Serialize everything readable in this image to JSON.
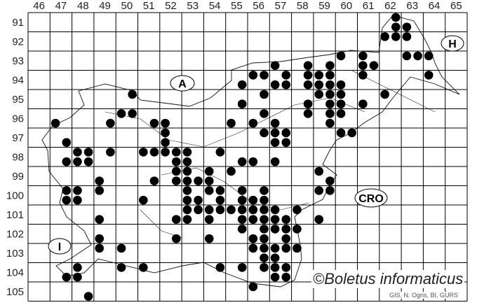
{
  "map": {
    "columns": [
      "46",
      "47",
      "48",
      "49",
      "50",
      "51",
      "52",
      "53",
      "54",
      "55",
      "56",
      "57",
      "58",
      "59",
      "60",
      "61",
      "62",
      "63",
      "64",
      "65"
    ],
    "rows": [
      "91",
      "92",
      "93",
      "94",
      "95",
      "96",
      "97",
      "98",
      "99",
      "100",
      "101",
      "102",
      "103",
      "104",
      "105"
    ],
    "country_labels": {
      "austria": "A",
      "hungary": "H",
      "croatia": "CRO",
      "italy": "I"
    },
    "watermark": "©Boletus informaticus",
    "credit": "GIS, N. Ogris, BI, GURS",
    "dot_color": "#000000",
    "records": [
      [
        62.75,
        91.25
      ],
      [
        62.75,
        91.75
      ],
      [
        63.25,
        91.75
      ],
      [
        62.25,
        92.25
      ],
      [
        62.75,
        92.25
      ],
      [
        63.25,
        92.25
      ],
      [
        60.25,
        93.25
      ],
      [
        61.25,
        93.25
      ],
      [
        63.25,
        93.25
      ],
      [
        63.75,
        93.25
      ],
      [
        64.25,
        93.25
      ],
      [
        57.25,
        93.75
      ],
      [
        58.75,
        93.75
      ],
      [
        59.75,
        93.75
      ],
      [
        61.25,
        93.75
      ],
      [
        61.75,
        93.75
      ],
      [
        56.25,
        94.25
      ],
      [
        56.75,
        94.25
      ],
      [
        57.75,
        94.25
      ],
      [
        58.75,
        94.25
      ],
      [
        59.25,
        94.25
      ],
      [
        59.75,
        94.25
      ],
      [
        61.25,
        94.25
      ],
      [
        64.25,
        94.25
      ],
      [
        55.75,
        94.75
      ],
      [
        57.25,
        94.75
      ],
      [
        57.75,
        94.75
      ],
      [
        58.75,
        94.75
      ],
      [
        59.25,
        94.75
      ],
      [
        59.75,
        94.75
      ],
      [
        60.25,
        94.75
      ],
      [
        56.75,
        95.25
      ],
      [
        59.25,
        95.25
      ],
      [
        59.75,
        95.25
      ],
      [
        60.25,
        95.25
      ],
      [
        62.25,
        95.25
      ],
      [
        50.75,
        95.25
      ],
      [
        55.75,
        95.75
      ],
      [
        58.75,
        95.75
      ],
      [
        59.75,
        95.75
      ],
      [
        60.25,
        95.75
      ],
      [
        61.25,
        95.75
      ],
      [
        56.75,
        96.25
      ],
      [
        58.75,
        96.25
      ],
      [
        59.75,
        96.25
      ],
      [
        60.25,
        96.25
      ],
      [
        50.25,
        96.25
      ],
      [
        50.75,
        96.25
      ],
      [
        56.25,
        96.75
      ],
      [
        57.25,
        96.75
      ],
      [
        59.75,
        96.75
      ],
      [
        47.25,
        96.75
      ],
      [
        49.75,
        96.75
      ],
      [
        51.75,
        96.75
      ],
      [
        52.25,
        96.75
      ],
      [
        55.25,
        96.75
      ],
      [
        56.75,
        97.25
      ],
      [
        57.25,
        97.25
      ],
      [
        57.75,
        97.25
      ],
      [
        60.25,
        97.25
      ],
      [
        60.75,
        97.25
      ],
      [
        52.25,
        97.25
      ],
      [
        57.25,
        97.75
      ],
      [
        57.75,
        97.75
      ],
      [
        47.75,
        97.75
      ],
      [
        52.25,
        97.75
      ],
      [
        48.25,
        98.25
      ],
      [
        48.75,
        98.25
      ],
      [
        49.75,
        98.25
      ],
      [
        51.25,
        98.25
      ],
      [
        51.75,
        98.25
      ],
      [
        52.25,
        98.25
      ],
      [
        52.75,
        98.25
      ],
      [
        53.25,
        98.25
      ],
      [
        54.75,
        98.25
      ],
      [
        47.75,
        98.75
      ],
      [
        48.25,
        98.75
      ],
      [
        48.75,
        98.75
      ],
      [
        52.75,
        98.75
      ],
      [
        53.25,
        98.75
      ],
      [
        55.75,
        98.75
      ],
      [
        56.25,
        98.75
      ],
      [
        57.25,
        98.75
      ],
      [
        52.75,
        99.25
      ],
      [
        53.25,
        99.25
      ],
      [
        54.25,
        99.25
      ],
      [
        55.25,
        99.25
      ],
      [
        59.25,
        99.25
      ],
      [
        49.25,
        99.75
      ],
      [
        51.75,
        99.75
      ],
      [
        52.75,
        99.75
      ],
      [
        53.25,
        99.75
      ],
      [
        53.75,
        99.75
      ],
      [
        54.25,
        99.75
      ],
      [
        59.75,
        99.75
      ],
      [
        47.75,
        100.25
      ],
      [
        48.25,
        100.25
      ],
      [
        49.25,
        100.25
      ],
      [
        53.25,
        100.25
      ],
      [
        54.25,
        100.25
      ],
      [
        54.75,
        100.25
      ],
      [
        55.75,
        100.25
      ],
      [
        56.75,
        100.25
      ],
      [
        59.25,
        100.25
      ],
      [
        59.75,
        100.25
      ],
      [
        47.75,
        100.75
      ],
      [
        48.25,
        100.75
      ],
      [
        51.25,
        100.75
      ],
      [
        53.25,
        100.75
      ],
      [
        53.75,
        100.75
      ],
      [
        54.75,
        100.75
      ],
      [
        55.75,
        100.75
      ],
      [
        56.25,
        100.75
      ],
      [
        56.75,
        100.75
      ],
      [
        53.25,
        101.25
      ],
      [
        53.75,
        101.25
      ],
      [
        54.25,
        101.25
      ],
      [
        54.75,
        101.25
      ],
      [
        55.25,
        101.25
      ],
      [
        55.75,
        101.25
      ],
      [
        56.25,
        101.25
      ],
      [
        56.75,
        101.25
      ],
      [
        57.25,
        101.25
      ],
      [
        58.25,
        101.25
      ],
      [
        49.25,
        101.75
      ],
      [
        52.75,
        101.75
      ],
      [
        53.25,
        101.75
      ],
      [
        54.25,
        101.75
      ],
      [
        55.75,
        101.75
      ],
      [
        56.25,
        101.75
      ],
      [
        56.75,
        101.75
      ],
      [
        57.25,
        101.75
      ],
      [
        57.75,
        101.75
      ],
      [
        59.25,
        101.75
      ],
      [
        55.75,
        102.25
      ],
      [
        56.75,
        102.25
      ],
      [
        57.25,
        102.25
      ],
      [
        57.75,
        102.25
      ],
      [
        58.25,
        102.25
      ],
      [
        49.25,
        102.75
      ],
      [
        52.75,
        102.75
      ],
      [
        54.25,
        102.75
      ],
      [
        56.25,
        102.75
      ],
      [
        56.75,
        102.75
      ],
      [
        57.75,
        102.75
      ],
      [
        49.25,
        103.25
      ],
      [
        50.25,
        103.25
      ],
      [
        56.25,
        103.25
      ],
      [
        56.75,
        103.25
      ],
      [
        57.25,
        103.25
      ],
      [
        57.75,
        103.25
      ],
      [
        58.25,
        103.25
      ],
      [
        56.75,
        103.75
      ],
      [
        57.25,
        103.75
      ],
      [
        48.25,
        104.25
      ],
      [
        50.25,
        104.25
      ],
      [
        51.25,
        104.25
      ],
      [
        54.75,
        104.25
      ],
      [
        55.75,
        104.25
      ],
      [
        56.75,
        104.25
      ],
      [
        57.25,
        104.25
      ],
      [
        57.75,
        104.25
      ],
      [
        47.75,
        104.75
      ],
      [
        48.25,
        104.75
      ],
      [
        57.25,
        104.75
      ],
      [
        57.75,
        104.75
      ],
      [
        56.25,
        105.25
      ],
      [
        48.75,
        105.75
      ]
    ]
  }
}
